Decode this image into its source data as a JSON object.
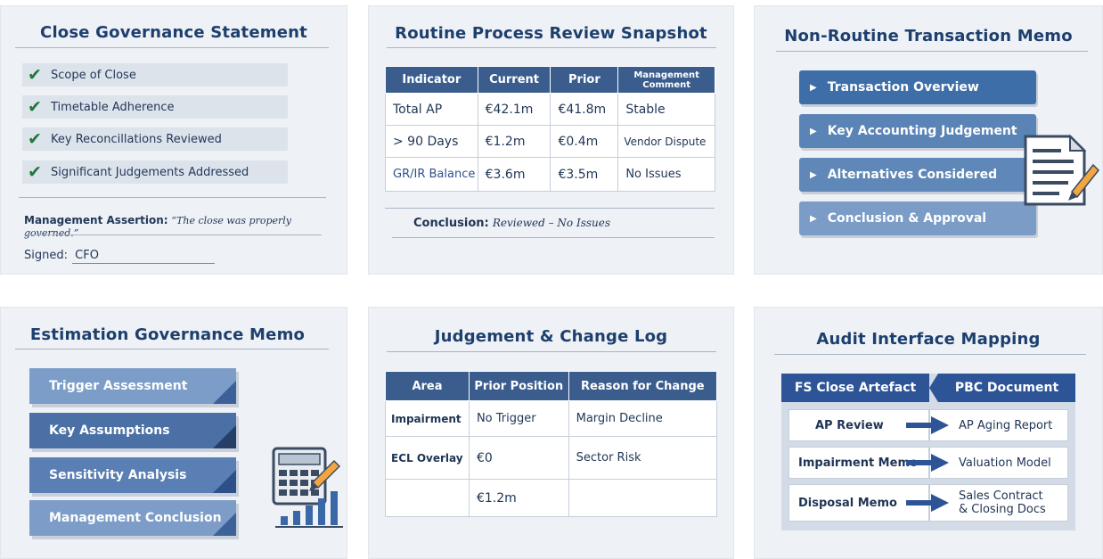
{
  "close_governance": {
    "title": "Close Governance Statement",
    "checklist": [
      "Scope of Close",
      "Timetable Adherence",
      "Key Reconcillations Reviewed",
      "Significant Judgements Addressed"
    ],
    "assertion_label": "Management Assertion:",
    "assertion_quote": "“The close was properly governed.”",
    "signed_label": "Signed:",
    "signed_value": "CFO"
  },
  "routine_review": {
    "title": "Routine Process Review Snapshot",
    "headers": [
      "Indicator",
      "Current",
      "Prior",
      "Management Comment"
    ],
    "rows": [
      [
        "Total AP",
        "€42.1m",
        "€41.8m",
        "Stable"
      ],
      [
        "> 90 Days",
        "€1.2m",
        "€0.4m",
        "Vendor Dispute"
      ],
      [
        "GR/IR Balance",
        "€3.6m",
        "€3.5m",
        "No Issues"
      ]
    ],
    "conclusion_label": "Conclusion:",
    "conclusion_value": "Reviewed – No Issues"
  },
  "non_routine": {
    "title": "Non-Routine Transaction Memo",
    "items": [
      "Transaction Overview",
      "Key Accounting Judgement",
      "Alternatives Considered",
      "Conclusion & Approval"
    ],
    "icon": "document-pencil-icon"
  },
  "estimation_memo": {
    "title": "Estimation Governance Memo",
    "steps": [
      "Trigger Assessment",
      "Key Assumptions",
      "Sensitivity Analysis",
      "Management Conclusion"
    ],
    "icon": "calculator-chart-icon"
  },
  "change_log": {
    "title": "Judgement & Change Log",
    "headers": [
      "Area",
      "Prior Position",
      "Reason for Change"
    ],
    "rows": [
      [
        "Impairment",
        "No Trigger",
        "Margin Decline"
      ],
      [
        "ECL Overlay",
        "€0",
        "Sector Risk"
      ],
      [
        "",
        "€1.2m",
        ""
      ]
    ]
  },
  "audit_mapping": {
    "title": "Audit Interface Mapping",
    "left_header": "FS Close Artefact",
    "right_header": "PBC Document",
    "rows": [
      {
        "artefact": "AP Review",
        "document": "AP Aging Report"
      },
      {
        "artefact": "Impairment Memo",
        "document": "Valuation Model"
      },
      {
        "artefact": "Disposal Memo",
        "document": "Sales Contract & Closing Docs"
      }
    ]
  },
  "colors": {
    "panel_bg": "#eef1f5",
    "title": "#1d3f6e",
    "header_blue": "#3a5d8e",
    "check_green": "#1e7a3c"
  }
}
